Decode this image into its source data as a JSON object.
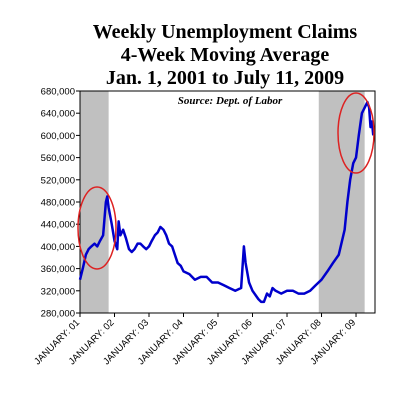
{
  "chart_data": {
    "type": "line",
    "title": "Weekly Unemployment Claims",
    "subtitle": "4-Week Moving Average",
    "date_range": "Jan. 1, 2001 to July 11, 2009",
    "annotation": "Source: Dept. of Labor",
    "color": "#0000cc",
    "shaded_color": "#c0c0c0",
    "shaded_regions": [
      [
        2001.0,
        2001.83
      ],
      [
        2007.92,
        2009.25
      ]
    ],
    "xlim": [
      2001.0,
      2009.55
    ],
    "ylim": [
      280000,
      680000
    ],
    "xticks": [
      {
        "value": 2001,
        "label": "JANUARY: 01"
      },
      {
        "value": 2002,
        "label": "JANUARY: 02"
      },
      {
        "value": 2003,
        "label": "JANUARY: 03"
      },
      {
        "value": 2004,
        "label": "JANUARY: 04"
      },
      {
        "value": 2005,
        "label": "JANUARY: 05"
      },
      {
        "value": 2006,
        "label": "JANUARY: 06"
      },
      {
        "value": 2007,
        "label": "JANUARY: 07"
      },
      {
        "value": 2008,
        "label": "JANUARY: 08"
      },
      {
        "value": 2009,
        "label": "JANUARY: 09"
      }
    ],
    "yticks": [
      {
        "value": 280000,
        "label": "280,000"
      },
      {
        "value": 320000,
        "label": "320,000"
      },
      {
        "value": 360000,
        "label": "360,000"
      },
      {
        "value": 400000,
        "label": "400,000"
      },
      {
        "value": 440000,
        "label": "440,000"
      },
      {
        "value": 480000,
        "label": "480,000"
      },
      {
        "value": 520000,
        "label": "520,000"
      },
      {
        "value": 560000,
        "label": "560,000"
      },
      {
        "value": 600000,
        "label": "600,000"
      },
      {
        "value": 640000,
        "label": "640,000"
      },
      {
        "value": 680000,
        "label": "680,000"
      }
    ],
    "x": [
      2001.0,
      2001.08,
      2001.17,
      2001.25,
      2001.33,
      2001.42,
      2001.5,
      2001.58,
      2001.67,
      2001.75,
      2001.79,
      2001.83,
      2001.92,
      2002.0,
      2002.08,
      2002.12,
      2002.17,
      2002.25,
      2002.33,
      2002.42,
      2002.5,
      2002.58,
      2002.67,
      2002.75,
      2002.83,
      2002.92,
      2003.0,
      2003.08,
      2003.17,
      2003.25,
      2003.33,
      2003.42,
      2003.5,
      2003.58,
      2003.67,
      2003.75,
      2003.83,
      2003.92,
      2004.0,
      2004.17,
      2004.33,
      2004.5,
      2004.67,
      2004.83,
      2005.0,
      2005.17,
      2005.33,
      2005.5,
      2005.67,
      2005.75,
      2005.8,
      2005.9,
      2006.0,
      2006.17,
      2006.25,
      2006.33,
      2006.42,
      2006.5,
      2006.58,
      2006.67,
      2006.83,
      2007.0,
      2007.17,
      2007.33,
      2007.5,
      2007.67,
      2007.83,
      2008.0,
      2008.17,
      2008.33,
      2008.5,
      2008.67,
      2008.75,
      2008.83,
      2008.92,
      2009.0,
      2009.08,
      2009.17,
      2009.25,
      2009.33,
      2009.38,
      2009.42,
      2009.46,
      2009.5
    ],
    "values": [
      340000,
      360000,
      385000,
      395000,
      400000,
      405000,
      400000,
      410000,
      420000,
      480000,
      490000,
      470000,
      440000,
      410000,
      395000,
      445000,
      420000,
      430000,
      415000,
      395000,
      390000,
      395000,
      405000,
      405000,
      400000,
      395000,
      400000,
      410000,
      420000,
      425000,
      435000,
      430000,
      420000,
      405000,
      400000,
      385000,
      370000,
      365000,
      355000,
      350000,
      340000,
      345000,
      345000,
      335000,
      335000,
      330000,
      325000,
      320000,
      325000,
      400000,
      370000,
      335000,
      320000,
      305000,
      300000,
      300000,
      315000,
      310000,
      325000,
      320000,
      315000,
      320000,
      320000,
      315000,
      315000,
      320000,
      330000,
      340000,
      355000,
      370000,
      385000,
      430000,
      480000,
      520000,
      550000,
      560000,
      600000,
      640000,
      650000,
      660000,
      650000,
      615000,
      625000,
      600000
    ]
  }
}
